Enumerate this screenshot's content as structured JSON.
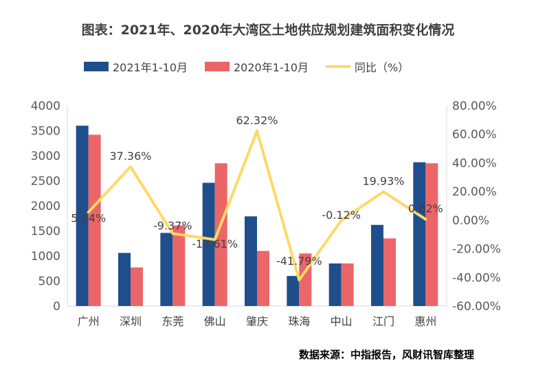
{
  "chart_data": {
    "type": "bar",
    "title": "图表：2021年、2020年大湾区土地供应规划建筑面积变化情况",
    "categories": [
      "广州",
      "深圳",
      "东莞",
      "佛山",
      "肇庆",
      "珠海",
      "中山",
      "江门",
      "惠州"
    ],
    "series": [
      {
        "name": "2021年1-10月",
        "type": "bar",
        "axis": "left",
        "color": "#1f4e8c",
        "values": [
          3600,
          1060,
          1460,
          2460,
          1790,
          600,
          850,
          1620,
          2870
        ]
      },
      {
        "name": "2020年1-10月",
        "type": "bar",
        "axis": "left",
        "color": "#ec6669",
        "values": [
          3420,
          770,
          1610,
          2850,
          1100,
          1050,
          850,
          1350,
          2850
        ]
      },
      {
        "name": "同比（%）",
        "type": "line",
        "axis": "right",
        "color": "#ffd966",
        "values": [
          5.54,
          37.36,
          -9.37,
          -13.61,
          62.32,
          -41.79,
          -0.12,
          19.93,
          0.62
        ],
        "labels": [
          "5.54%",
          "37.36%",
          "-9.37%",
          "-13.61%",
          "62.32%",
          "-41.79%",
          "-0.12%",
          "19.93%",
          "0.62%"
        ]
      }
    ],
    "y_left": {
      "min": 0,
      "max": 4000,
      "step": 500,
      "ticks": [
        "0",
        "500",
        "1000",
        "1500",
        "2000",
        "2500",
        "3000",
        "3500",
        "4000"
      ]
    },
    "y_right": {
      "min": -60,
      "max": 80,
      "step": 20,
      "ticks": [
        "-60.00%",
        "-40.00%",
        "-20.00%",
        "0.00%",
        "20.00%",
        "40.00%",
        "60.00%",
        "80.00%"
      ]
    },
    "grid": false,
    "legend_position": "top-center"
  },
  "source": "数据来源：中指报告，风财讯智库整理"
}
